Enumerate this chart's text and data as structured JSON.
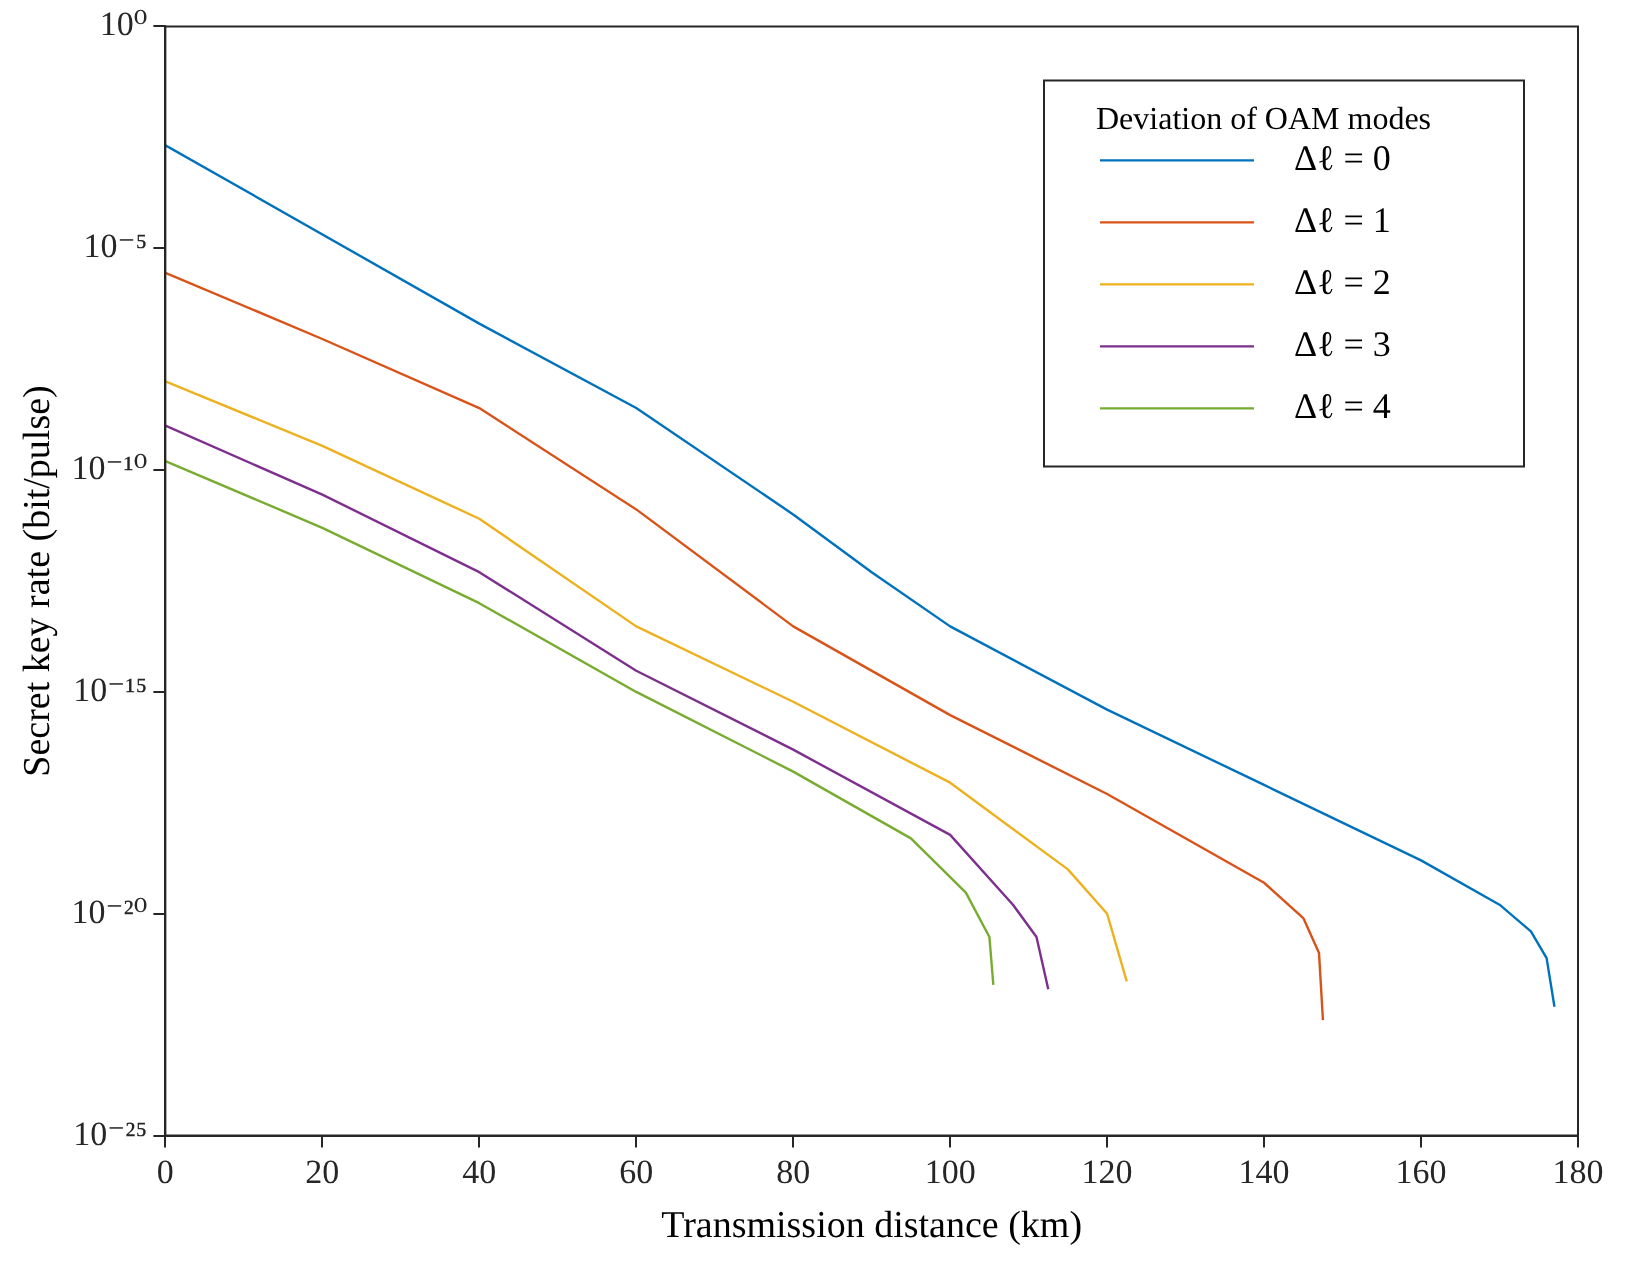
{
  "chart_data": {
    "type": "line",
    "xlabel": "Transmission distance (km)",
    "ylabel": "Secret key rate (bit/pulse)",
    "legend_title": "Deviation of OAM modes",
    "log": "y",
    "grid": false,
    "legend": "top right",
    "marker": "none",
    "line_style": "solid",
    "xlim": [
      0,
      180
    ],
    "xticks": [
      0,
      20,
      40,
      60,
      80,
      100,
      120,
      140,
      160,
      180
    ],
    "ylim": [
      1e-25,
      1
    ],
    "yticks": [
      {
        "value": 1,
        "label": "10⁰"
      },
      {
        "value": 1e-05,
        "label": "10⁻⁵"
      },
      {
        "value": 1e-10,
        "label": "10⁻¹⁰"
      },
      {
        "value": 1e-15,
        "label": "10⁻¹⁵"
      },
      {
        "value": 1e-20,
        "label": "10⁻²⁰"
      },
      {
        "value": 1e-25,
        "label": "10⁻²⁵"
      }
    ],
    "series": [
      {
        "name": "Δℓ = 0",
        "color": "#0072bd",
        "x": [
          0,
          40,
          60,
          80,
          90,
          100,
          120,
          140,
          160,
          170,
          174,
          176,
          177
        ],
        "values": [
          0.0021,
          2e-07,
          2.5e-09,
          1e-11,
          5e-13,
          3e-14,
          4e-16,
          8e-18,
          1.6e-19,
          1.6e-20,
          4e-21,
          1e-21,
          8e-23
        ]
      },
      {
        "name": "Δℓ = 1",
        "color": "#d95319",
        "x": [
          0,
          20,
          40,
          60,
          80,
          100,
          120,
          140,
          145,
          147,
          147.5
        ],
        "values": [
          2.8e-06,
          9e-08,
          2.5e-09,
          1.3e-11,
          3e-14,
          3e-16,
          5e-18,
          5e-20,
          8e-21,
          1.3e-21,
          4e-23
        ]
      },
      {
        "name": "Δℓ = 2",
        "color": "#edb120",
        "x": [
          0,
          20,
          40,
          60,
          80,
          100,
          115,
          120,
          122.5
        ],
        "values": [
          1e-08,
          3.5e-10,
          8e-12,
          3e-14,
          6e-16,
          9e-18,
          1e-19,
          1e-20,
          3e-22
        ]
      },
      {
        "name": "Δℓ = 3",
        "color": "#7e2f8e",
        "x": [
          0,
          20,
          40,
          60,
          80,
          100,
          108,
          111,
          112.5
        ],
        "values": [
          1e-09,
          2.8e-11,
          5e-13,
          3e-15,
          5e-17,
          6e-19,
          1.6e-20,
          3e-21,
          2e-22
        ]
      },
      {
        "name": "Δℓ = 4",
        "color": "#77ac30",
        "x": [
          0,
          20,
          40,
          60,
          80,
          95,
          102,
          105,
          105.5
        ],
        "values": [
          1.6e-10,
          5e-12,
          1e-13,
          1e-15,
          1.6e-17,
          5e-19,
          3e-20,
          3e-21,
          2.5e-22
        ]
      }
    ]
  }
}
